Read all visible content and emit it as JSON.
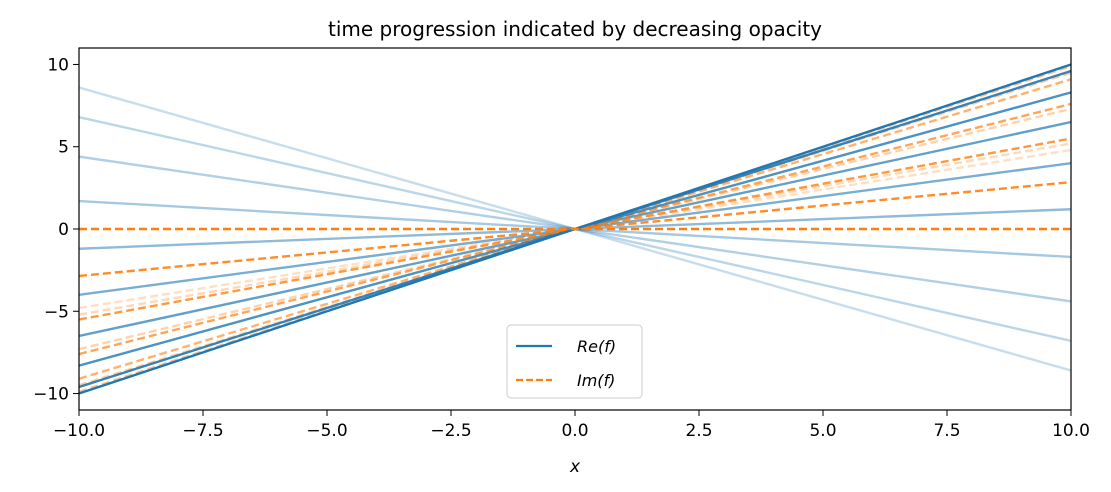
{
  "chart_data": {
    "type": "line",
    "title": "time progression indicated by decreasing opacity",
    "xlabel": "x",
    "ylabel": "",
    "xlim": [
      -10,
      10
    ],
    "ylim": [
      -11,
      11
    ],
    "x_ticks": [
      -10,
      -7.5,
      -5,
      -2.5,
      0,
      2.5,
      5,
      7.5,
      10
    ],
    "x_tick_labels": [
      "−10.0",
      "−7.5",
      "−5.0",
      "−2.5",
      "0.0",
      "2.5",
      "5.0",
      "7.5",
      "10.0"
    ],
    "y_ticks": [
      -10,
      -5,
      0,
      5,
      10
    ],
    "y_tick_labels": [
      "−10",
      "−5",
      "0",
      "5",
      "10"
    ],
    "grid": false,
    "legend": {
      "position": "lower-center",
      "entries": [
        "Re(f)",
        "Im(f)"
      ]
    },
    "colors": {
      "re": "#1f77b4",
      "im": "#ff7f0e"
    },
    "series": [
      {
        "legend": "Re(f)",
        "style": "solid",
        "opacity": 1.0,
        "x": [
          -10,
          10
        ],
        "y": [
          -10.0,
          10.0
        ]
      },
      {
        "legend": "Im(f)",
        "style": "dashed",
        "opacity": 1.0,
        "x": [
          -10,
          10
        ],
        "y": [
          0.0,
          0.0
        ]
      },
      {
        "style": "solid",
        "opacity": 0.9,
        "x": [
          -10,
          10
        ],
        "y": [
          -9.6,
          9.6
        ]
      },
      {
        "style": "dashed",
        "opacity": 0.9,
        "x": [
          -10,
          10
        ],
        "y": [
          -2.85,
          2.85
        ]
      },
      {
        "style": "solid",
        "opacity": 0.8,
        "x": [
          -10,
          10
        ],
        "y": [
          -8.3,
          8.3
        ]
      },
      {
        "style": "dashed",
        "opacity": 0.8,
        "x": [
          -10,
          10
        ],
        "y": [
          -5.5,
          5.5
        ]
      },
      {
        "style": "solid",
        "opacity": 0.7,
        "x": [
          -10,
          10
        ],
        "y": [
          -6.5,
          6.5
        ]
      },
      {
        "style": "dashed",
        "opacity": 0.7,
        "x": [
          -10,
          10
        ],
        "y": [
          -7.6,
          7.6
        ]
      },
      {
        "style": "solid",
        "opacity": 0.6,
        "x": [
          -10,
          10
        ],
        "y": [
          -4.0,
          4.0
        ]
      },
      {
        "style": "dashed",
        "opacity": 0.6,
        "x": [
          -10,
          10
        ],
        "y": [
          -9.1,
          9.1
        ]
      },
      {
        "style": "solid",
        "opacity": 0.5,
        "x": [
          -10,
          10
        ],
        "y": [
          -1.2,
          1.2
        ]
      },
      {
        "style": "dashed",
        "opacity": 0.5,
        "x": [
          -10,
          10
        ],
        "y": [
          -9.9,
          9.9
        ]
      },
      {
        "style": "solid",
        "opacity": 0.4,
        "x": [
          -10,
          10
        ],
        "y": [
          1.7,
          -1.7
        ]
      },
      {
        "style": "dashed",
        "opacity": 0.4,
        "x": [
          -10,
          10
        ],
        "y": [
          -9.5,
          9.5
        ]
      },
      {
        "style": "solid",
        "opacity": 0.35,
        "x": [
          -10,
          10
        ],
        "y": [
          4.4,
          -4.4
        ]
      },
      {
        "style": "dashed",
        "opacity": 0.35,
        "x": [
          -10,
          10
        ],
        "y": [
          -7.3,
          7.3
        ]
      },
      {
        "style": "solid",
        "opacity": 0.3,
        "x": [
          -10,
          10
        ],
        "y": [
          6.8,
          -6.8
        ]
      },
      {
        "style": "dashed",
        "opacity": 0.3,
        "x": [
          -10,
          10
        ],
        "y": [
          -5.2,
          5.2
        ]
      },
      {
        "style": "solid",
        "opacity": 0.25,
        "x": [
          -10,
          10
        ],
        "y": [
          8.6,
          -8.6
        ]
      },
      {
        "style": "dashed",
        "opacity": 0.25,
        "x": [
          -10,
          10
        ],
        "y": [
          -4.8,
          4.8
        ]
      }
    ]
  }
}
